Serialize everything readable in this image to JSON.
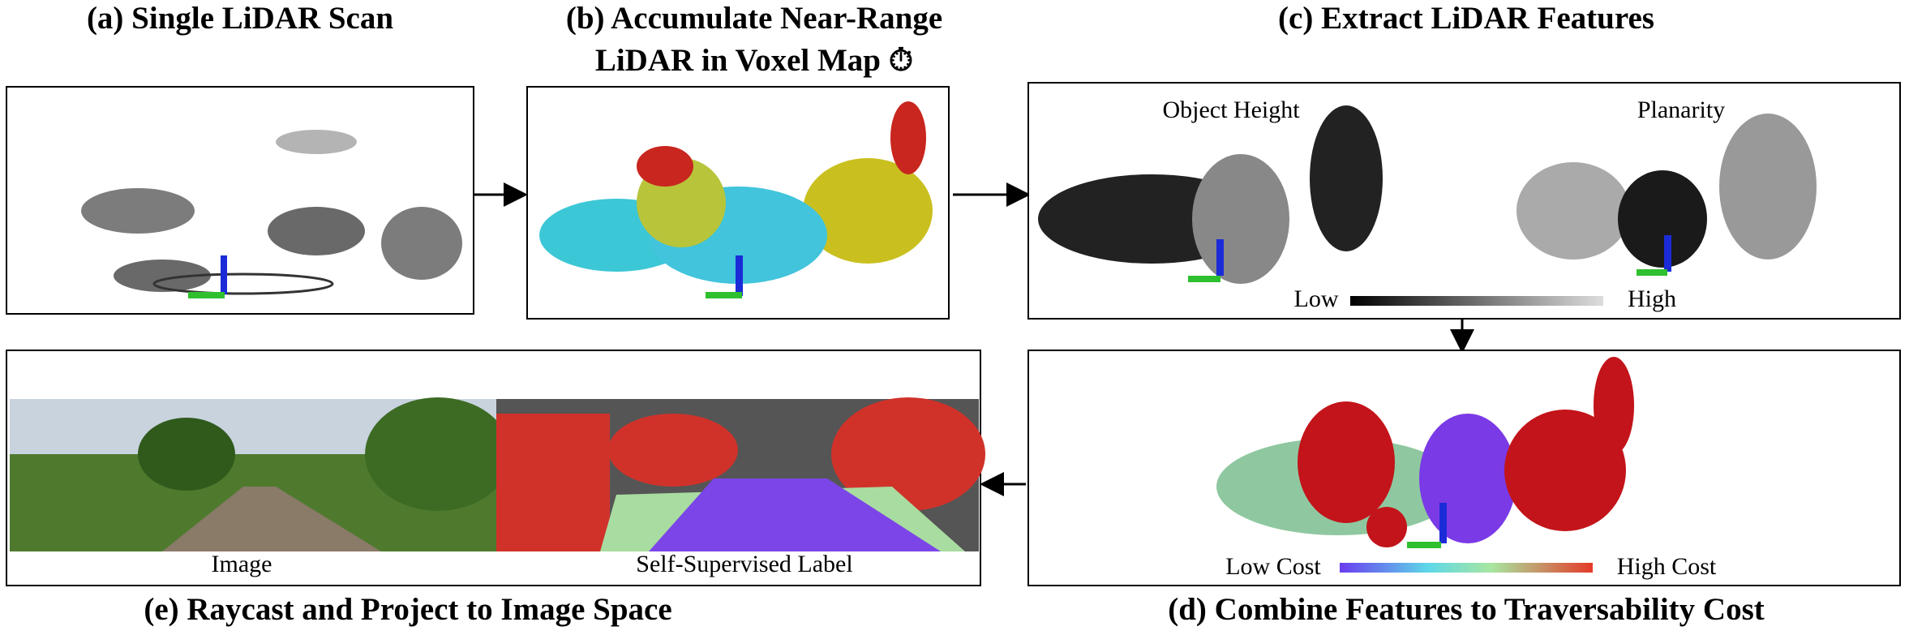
{
  "panels": {
    "a": {
      "title": "(a) Single LiDAR Scan"
    },
    "b": {
      "title_lines": [
        "(b) Accumulate Near-Range",
        "LiDAR in Voxel Map ⏱"
      ]
    },
    "c": {
      "title": "(c) Extract LiDAR Features",
      "labels": [
        "Object Height",
        "Planarity"
      ],
      "scale": [
        "Low",
        "High"
      ]
    },
    "d": {
      "title": "(d) Combine Features to Traversability Cost",
      "scale": [
        "Low Cost",
        "High Cost"
      ]
    },
    "e": {
      "title": "(e) Raycast and Project to Image Space",
      "labels": [
        "Image",
        "Self-Supervised Label"
      ]
    }
  }
}
